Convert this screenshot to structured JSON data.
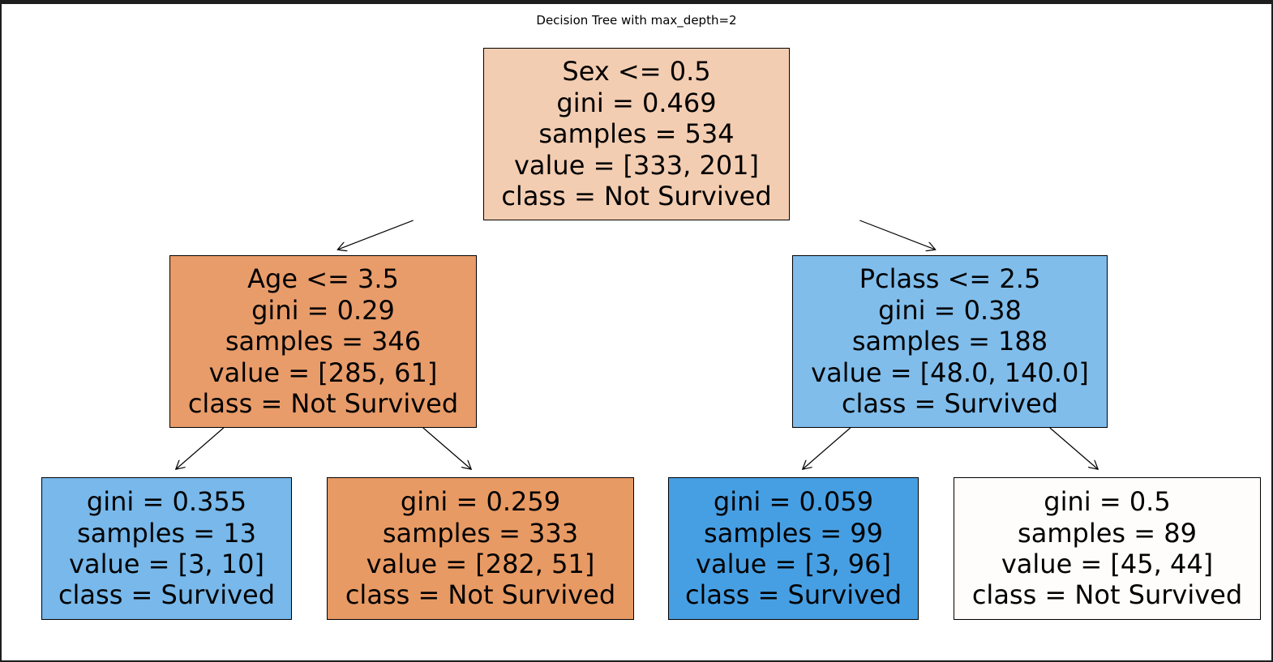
{
  "title": "Decision Tree with max_depth=2",
  "colors": {
    "page_bg": "#1e1e1e",
    "figure_bg": "#ffffff",
    "edge": "#000000"
  },
  "nodes": [
    {
      "id": "root",
      "condition": "Sex <= 0.5",
      "gini": "gini = 0.469",
      "samples": "samples = 534",
      "value": "value = [333, 201]",
      "class": "class = Not Survived",
      "fill": "#f3cdb1"
    },
    {
      "id": "left",
      "condition": "Age <= 3.5",
      "gini": "gini = 0.29",
      "samples": "samples = 346",
      "value": "value = [285, 61]",
      "class": "class = Not Survived",
      "fill": "#e89c6a"
    },
    {
      "id": "right",
      "condition": "Pclass <= 2.5",
      "gini": "gini = 0.38",
      "samples": "samples = 188",
      "value": "value = [48.0, 140.0]",
      "class": "class = Survived",
      "fill": "#80bdeb"
    },
    {
      "id": "left-left",
      "gini": "gini = 0.355",
      "samples": "samples = 13",
      "value": "value = [3, 10]",
      "class": "class = Survived",
      "fill": "#78b8ea"
    },
    {
      "id": "left-right",
      "gini": "gini = 0.259",
      "samples": "samples = 333",
      "value": "value = [282, 51]",
      "class": "class = Not Survived",
      "fill": "#e89a64"
    },
    {
      "id": "right-left",
      "gini": "gini = 0.059",
      "samples": "samples = 99",
      "value": "value = [3, 96]",
      "class": "class = Survived",
      "fill": "#479fe3"
    },
    {
      "id": "right-right",
      "gini": "gini = 0.5",
      "samples": "samples = 89",
      "value": "value = [45, 44]",
      "class": "class = Not Survived",
      "fill": "#fefdfc"
    }
  ],
  "edges": [
    {
      "from": "root",
      "to": "left"
    },
    {
      "from": "root",
      "to": "right"
    },
    {
      "from": "left",
      "to": "left-left"
    },
    {
      "from": "left",
      "to": "left-right"
    },
    {
      "from": "right",
      "to": "right-left"
    },
    {
      "from": "right",
      "to": "right-right"
    }
  ]
}
